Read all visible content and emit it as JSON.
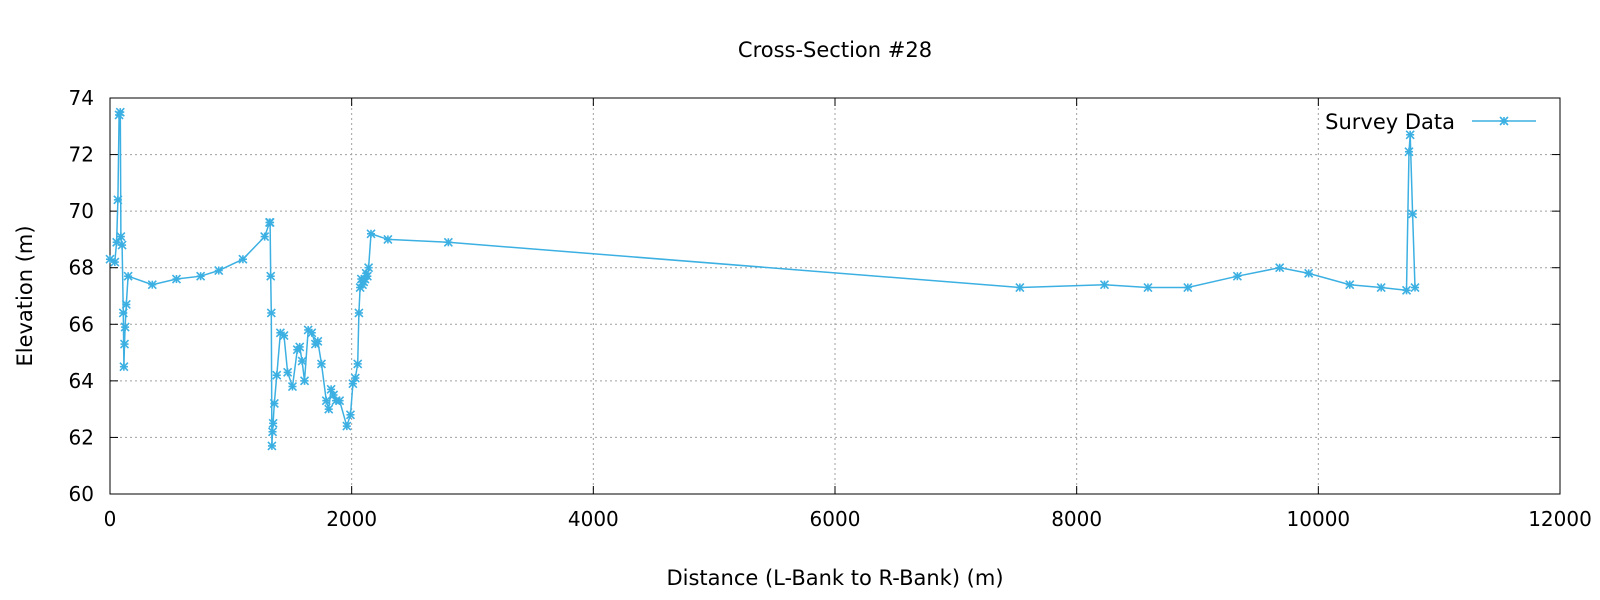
{
  "chart_data": {
    "type": "line",
    "title": "Cross-Section #28",
    "xlabel": "Distance (L-Bank to R-Bank) (m)",
    "ylabel": "Elevation (m)",
    "xlim": [
      0,
      12000
    ],
    "ylim": [
      60,
      74
    ],
    "xticks": [
      0,
      2000,
      4000,
      6000,
      8000,
      10000,
      12000
    ],
    "yticks": [
      60,
      62,
      64,
      66,
      68,
      70,
      72,
      74
    ],
    "grid": true,
    "legend_position": "top-right",
    "series": [
      {
        "name": "Survey Data",
        "color": "#3cb0e2",
        "marker": "asterisk",
        "x": [
          0,
          40,
          55,
          65,
          75,
          85,
          90,
          100,
          110,
          115,
          120,
          125,
          135,
          150,
          350,
          550,
          750,
          900,
          1100,
          1280,
          1320,
          1325,
          1330,
          1335,
          1340,
          1345,
          1350,
          1360,
          1380,
          1410,
          1440,
          1470,
          1510,
          1550,
          1570,
          1590,
          1610,
          1640,
          1670,
          1700,
          1720,
          1750,
          1790,
          1810,
          1830,
          1850,
          1870,
          1900,
          1960,
          1990,
          2010,
          2030,
          2050,
          2060,
          2070,
          2080,
          2090,
          2100,
          2110,
          2120,
          2130,
          2140,
          2160,
          2300,
          2800,
          7530,
          8230,
          8590,
          8920,
          9330,
          9680,
          9920,
          10260,
          10520,
          10730,
          10750,
          10760,
          10780,
          10800
        ],
        "y": [
          68.3,
          68.2,
          68.9,
          70.4,
          73.4,
          73.5,
          69.1,
          68.8,
          66.4,
          64.5,
          65.3,
          65.9,
          66.7,
          67.7,
          67.4,
          67.6,
          67.7,
          67.9,
          68.3,
          69.1,
          69.6,
          69.6,
          67.7,
          66.4,
          61.7,
          62.2,
          62.5,
          63.2,
          64.2,
          65.7,
          65.6,
          64.3,
          63.8,
          65.1,
          65.2,
          64.7,
          64.0,
          65.8,
          65.7,
          65.3,
          65.4,
          64.6,
          63.3,
          63.0,
          63.7,
          63.5,
          63.3,
          63.3,
          62.4,
          62.8,
          63.9,
          64.1,
          64.6,
          66.4,
          67.3,
          67.6,
          67.4,
          67.5,
          67.6,
          67.8,
          67.7,
          68.0,
          69.2,
          69.0,
          68.9,
          67.3,
          67.4,
          67.3,
          67.3,
          67.7,
          68.0,
          67.8,
          67.4,
          67.3,
          67.2,
          72.1,
          72.7,
          69.9,
          67.3
        ]
      }
    ]
  }
}
